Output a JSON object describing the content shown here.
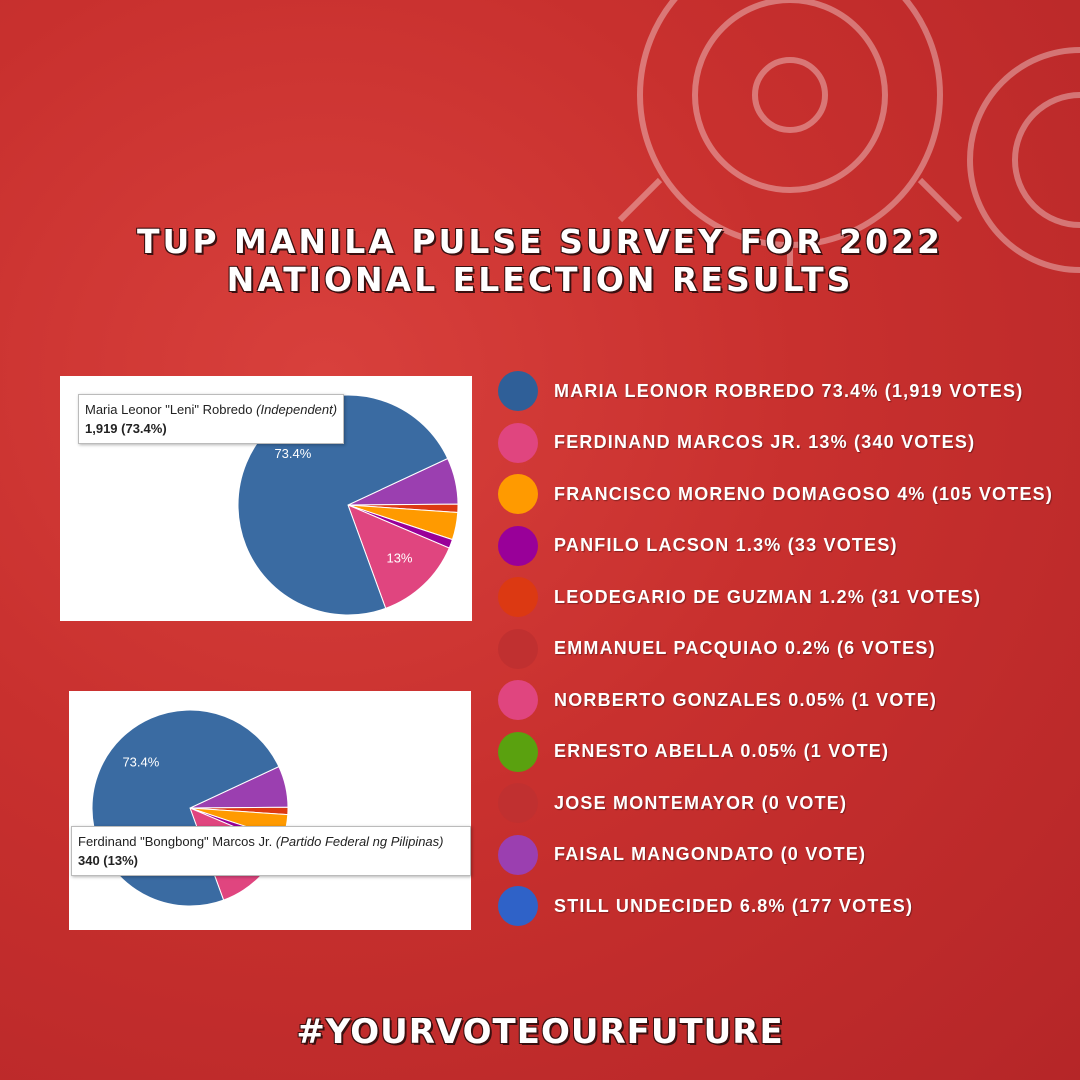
{
  "header": {
    "title_line1": "TUP MANILA PULSE SURVEY  FOR 2022",
    "title_line2": "NATIONAL ELECTION RESULTS"
  },
  "legend": [
    {
      "text": "MARIA LEONOR ROBREDO 73.4% (1,919 VOTES)",
      "color": "#2f5f98"
    },
    {
      "text": "FERDINAND MARCOS JR. 13% (340 VOTES)",
      "color": "#e0457f"
    },
    {
      "text": "FRANCISCO MORENO DOMAGOSO 4% (105 VOTES)",
      "color": "#ff9a00"
    },
    {
      "text": "PANFILO LACSON 1.3% (33 VOTES)",
      "color": "#990099"
    },
    {
      "text": "LEODEGARIO DE GUZMAN 1.2% (31 VOTES)",
      "color": "#dc3912"
    },
    {
      "text": "EMMANUEL PACQUIAO 0.2% (6 VOTES)",
      "color": "#c03030"
    },
    {
      "text": "NORBERTO GONZALES 0.05% (1 VOTE)",
      "color": "#e0457f"
    },
    {
      "text": "ERNESTO ABELLA 0.05% (1 VOTE)",
      "color": "#5aa10f"
    },
    {
      "text": "JOSE MONTEMAYOR (0 VOTE)",
      "color": "#c03030"
    },
    {
      "text": "FAISAL MANGONDATO (0 VOTE)",
      "color": "#9b3fb0"
    },
    {
      "text": "STILL UNDECIDED 6.8% (177 VOTES)",
      "color": "#2f62c8"
    }
  ],
  "chart_data": [
    {
      "type": "pie",
      "values": [
        6.8,
        1.2,
        4,
        1.3,
        13,
        73.4
      ],
      "value_labels": [
        null,
        null,
        null,
        null,
        "13%",
        "73.4%"
      ],
      "colors": [
        "#9b3fb0",
        "#dc3912",
        "#ff9a00",
        "#990099",
        "#e0457f",
        "#3a6ba2"
      ],
      "tooltip": {
        "name": "Maria Leonor \"Leni\" Robredo",
        "party": "(Independent)",
        "value": "1,919 (73.4%)"
      }
    },
    {
      "type": "pie",
      "values": [
        6.8,
        1.2,
        4,
        1.3,
        13,
        73.4
      ],
      "value_labels": [
        null,
        null,
        null,
        null,
        null,
        "73.4%"
      ],
      "colors": [
        "#9b3fb0",
        "#dc3912",
        "#ff9a00",
        "#990099",
        "#e0457f",
        "#3a6ba2"
      ],
      "tooltip": {
        "name": "Ferdinand \"Bongbong\" Marcos Jr.",
        "party": "(Partido Federal ng Pilipinas)",
        "value": "340 (13%)"
      }
    }
  ],
  "footer": {
    "hashtag": "#YOURVOTEOURFUTURE"
  }
}
